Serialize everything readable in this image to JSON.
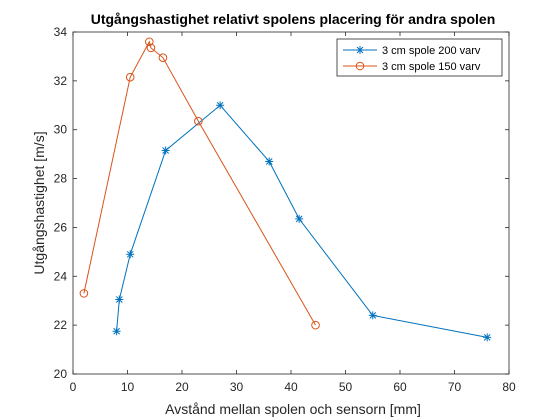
{
  "chart_data": {
    "type": "line",
    "title": "Utgångshastighet relativt spolens placering för andra spolen",
    "xlabel": "Avstånd mellan spolen och sensorn [mm]",
    "ylabel": "Utgångshastighet [m/s]",
    "xlim": [
      0,
      80
    ],
    "ylim": [
      20,
      34
    ],
    "xticks": [
      0,
      10,
      20,
      30,
      40,
      50,
      60,
      70,
      80
    ],
    "yticks": [
      20,
      22,
      24,
      26,
      28,
      30,
      32,
      34
    ],
    "grid": false,
    "legend_position": "top-right",
    "series": [
      {
        "name": "3 cm spole 200 varv",
        "color": "#0072BD",
        "marker": "asterisk",
        "x": [
          8,
          8.5,
          10.5,
          17,
          27,
          36,
          41.5,
          55,
          76
        ],
        "y": [
          21.75,
          23.05,
          24.9,
          29.15,
          31.0,
          28.7,
          26.35,
          22.4,
          21.5
        ]
      },
      {
        "name": "3 cm spole 150 varv",
        "color": "#D95319",
        "marker": "circle",
        "x": [
          2,
          10.5,
          14,
          14.3,
          16.5,
          23,
          44.5
        ],
        "y": [
          23.3,
          32.15,
          33.6,
          33.35,
          32.95,
          30.35,
          22.0
        ]
      }
    ]
  }
}
